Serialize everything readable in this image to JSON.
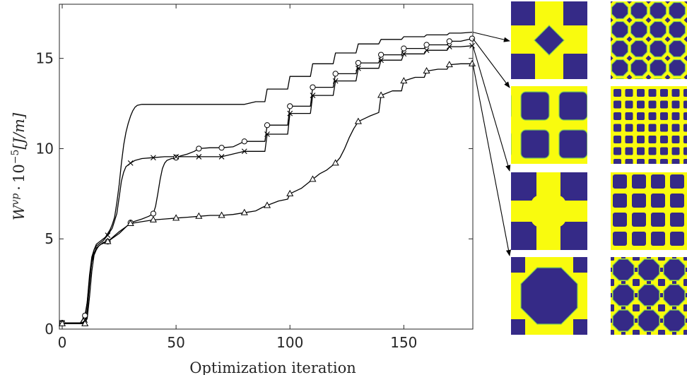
{
  "chart_data": {
    "type": "line",
    "xlabel": "Optimization iteration",
    "ylabel": "W^vp · 10^−5 [J/m]",
    "ylabel_parts": {
      "symbol": "W",
      "superscript": "vp",
      "dot": "·",
      "base": "10",
      "exponent": "−5",
      "unit": "[J/m]"
    },
    "xlim": [
      0,
      180
    ],
    "ylim": [
      0,
      18
    ],
    "x_ticks": [
      0,
      50,
      100,
      150
    ],
    "y_ticks": [
      0,
      5,
      10,
      15
    ],
    "grid": false,
    "legend": "none",
    "series": [
      {
        "marker": "none",
        "x": [
          0,
          8,
          10,
          11,
          12,
          13,
          14,
          15,
          16,
          17,
          18,
          19,
          20,
          21,
          22,
          23,
          24,
          25,
          26,
          27,
          28,
          29,
          30,
          31,
          32,
          33,
          35,
          37,
          40,
          45,
          50,
          55,
          60,
          70,
          80,
          85,
          89,
          90,
          95,
          99,
          100,
          105,
          109,
          110,
          115,
          119,
          120,
          125,
          129,
          130,
          135,
          139,
          140,
          145,
          149,
          150,
          155,
          159,
          160,
          165,
          169,
          170,
          175,
          180
        ],
        "y": [
          0.35,
          0.35,
          0.4,
          1.0,
          2.5,
          3.8,
          4.4,
          4.7,
          4.8,
          4.9,
          5.0,
          5.1,
          5.3,
          5.5,
          5.8,
          6.2,
          7.0,
          8.0,
          9.2,
          10.2,
          10.9,
          11.4,
          11.8,
          12.1,
          12.3,
          12.4,
          12.45,
          12.45,
          12.45,
          12.45,
          12.45,
          12.45,
          12.45,
          12.45,
          12.45,
          12.6,
          12.6,
          13.3,
          13.3,
          13.3,
          14.0,
          14.0,
          14.0,
          14.7,
          14.7,
          14.7,
          15.3,
          15.3,
          15.3,
          15.8,
          15.8,
          15.8,
          16.05,
          16.05,
          16.05,
          16.2,
          16.2,
          16.2,
          16.3,
          16.3,
          16.3,
          16.4,
          16.4,
          16.45
        ]
      },
      {
        "marker": "circle",
        "x": [
          0,
          8,
          10,
          11,
          12,
          13,
          14,
          15,
          16,
          17,
          18,
          20,
          25,
          30,
          35,
          38,
          40,
          41,
          42,
          43,
          44,
          45,
          46,
          47,
          48,
          49,
          50,
          52,
          55,
          58,
          60,
          65,
          70,
          75,
          80,
          85,
          89,
          90,
          95,
          99,
          100,
          105,
          109,
          110,
          115,
          119,
          120,
          125,
          129,
          130,
          135,
          139,
          140,
          145,
          149,
          150,
          155,
          159,
          160,
          165,
          169,
          170,
          175,
          180
        ],
        "y": [
          0.35,
          0.35,
          0.75,
          1.5,
          2.8,
          3.7,
          4.2,
          4.5,
          4.6,
          4.7,
          4.8,
          4.85,
          5.3,
          5.9,
          6.1,
          6.25,
          6.4,
          6.8,
          7.5,
          8.3,
          8.9,
          9.2,
          9.35,
          9.4,
          9.45,
          9.45,
          9.5,
          9.6,
          9.7,
          9.85,
          10.0,
          10.05,
          10.05,
          10.1,
          10.4,
          10.4,
          10.4,
          11.3,
          11.3,
          11.3,
          12.35,
          12.35,
          12.35,
          13.4,
          13.4,
          13.4,
          14.15,
          14.15,
          14.15,
          14.75,
          14.75,
          14.75,
          15.2,
          15.2,
          15.2,
          15.55,
          15.55,
          15.55,
          15.75,
          15.75,
          15.75,
          15.95,
          15.95,
          16.1
        ],
        "markers_x": [
          0,
          10,
          20,
          30,
          40,
          50,
          60,
          70,
          80,
          90,
          100,
          110,
          120,
          130,
          140,
          150,
          160,
          170,
          180
        ],
        "markers_y": [
          0.35,
          0.75,
          4.85,
          5.9,
          6.4,
          9.5,
          10.0,
          10.05,
          10.4,
          11.3,
          12.35,
          13.4,
          14.15,
          14.75,
          15.2,
          15.55,
          15.75,
          15.95,
          16.1
        ]
      },
      {
        "marker": "x",
        "x": [
          0,
          9,
          10,
          11,
          12,
          13,
          14,
          15,
          16,
          17,
          18,
          20,
          22,
          24,
          25,
          26,
          27,
          28,
          30,
          32,
          35,
          40,
          45,
          50,
          55,
          60,
          70,
          80,
          85,
          89,
          90,
          95,
          99,
          100,
          105,
          109,
          110,
          115,
          119,
          120,
          125,
          129,
          130,
          135,
          139,
          140,
          145,
          149,
          150,
          155,
          159,
          160,
          165,
          169,
          170,
          175,
          180
        ],
        "y": [
          0.35,
          0.35,
          0.5,
          1.5,
          3.0,
          4.0,
          4.4,
          4.6,
          4.7,
          4.8,
          4.9,
          5.2,
          5.6,
          6.4,
          7.3,
          8.2,
          8.7,
          9.0,
          9.2,
          9.35,
          9.45,
          9.5,
          9.55,
          9.55,
          9.55,
          9.55,
          9.55,
          9.85,
          9.85,
          9.85,
          10.8,
          10.8,
          10.8,
          11.95,
          11.95,
          11.95,
          12.95,
          12.95,
          12.95,
          13.75,
          13.75,
          13.75,
          14.45,
          14.45,
          14.45,
          14.9,
          14.9,
          14.9,
          15.25,
          15.25,
          15.25,
          15.45,
          15.45,
          15.45,
          15.65,
          15.65,
          15.7
        ],
        "markers_x": [
          0,
          10,
          20,
          30,
          40,
          50,
          60,
          70,
          80,
          90,
          100,
          110,
          120,
          130,
          140,
          150,
          160,
          170,
          180
        ],
        "markers_y": [
          0.35,
          0.5,
          5.2,
          9.2,
          9.5,
          9.55,
          9.55,
          9.55,
          9.85,
          10.8,
          11.95,
          12.95,
          13.75,
          14.45,
          14.9,
          15.25,
          15.45,
          15.65,
          15.7
        ]
      },
      {
        "marker": "triangle",
        "x": [
          0,
          9,
          10,
          11,
          12,
          13,
          14,
          15,
          16,
          17,
          18,
          20,
          25,
          30,
          35,
          40,
          45,
          50,
          55,
          60,
          65,
          70,
          75,
          80,
          85,
          88,
          90,
          95,
          99,
          100,
          105,
          108,
          110,
          113,
          116,
          120,
          122,
          124,
          126,
          128,
          129,
          130,
          135,
          139,
          140,
          145,
          149,
          150,
          155,
          159,
          160,
          165,
          169,
          170,
          175,
          180
        ],
        "y": [
          0.3,
          0.3,
          0.3,
          0.6,
          1.8,
          3.2,
          4.1,
          4.4,
          4.6,
          4.7,
          4.75,
          4.85,
          5.4,
          5.85,
          5.95,
          6.05,
          6.1,
          6.15,
          6.2,
          6.25,
          6.3,
          6.3,
          6.35,
          6.45,
          6.55,
          6.75,
          6.85,
          7.1,
          7.2,
          7.5,
          7.8,
          8.1,
          8.3,
          8.6,
          8.8,
          9.2,
          9.5,
          10.0,
          10.6,
          11.1,
          11.3,
          11.5,
          11.8,
          12.0,
          12.95,
          13.2,
          13.2,
          13.75,
          13.95,
          13.95,
          14.3,
          14.4,
          14.4,
          14.65,
          14.7,
          14.7
        ],
        "markers_x": [
          0,
          10,
          20,
          30,
          40,
          50,
          60,
          70,
          80,
          90,
          100,
          110,
          120,
          130,
          140,
          150,
          160,
          170,
          180
        ],
        "markers_y": [
          0.3,
          0.3,
          4.85,
          5.85,
          6.05,
          6.15,
          6.25,
          6.3,
          6.45,
          6.85,
          7.5,
          8.3,
          9.2,
          11.5,
          12.95,
          13.75,
          14.3,
          14.65,
          14.7
        ]
      }
    ],
    "annotations": [
      {
        "from_x": 180,
        "from_y": 16.45,
        "to": "row-1"
      },
      {
        "from_x": 180,
        "from_y": 16.1,
        "to": "row-2"
      },
      {
        "from_x": 180,
        "from_y": 15.7,
        "to": "row-3"
      },
      {
        "from_x": 180,
        "from_y": 14.7,
        "to": "row-4"
      }
    ]
  },
  "thumbnails": {
    "colors": {
      "void": "#352a87",
      "solid": "#f9fb0e",
      "edge": "#7fce58"
    },
    "rows": [
      {
        "left": "cross-with-diamond-hole",
        "right": "octagon-lattice-fine"
      },
      {
        "left": "rounded-square-grid",
        "right": "square-grid-fine"
      },
      {
        "left": "plus-cross",
        "right": "square-grid-medium"
      },
      {
        "left": "octagon-hole",
        "right": "octagon-square-lattice"
      }
    ]
  }
}
